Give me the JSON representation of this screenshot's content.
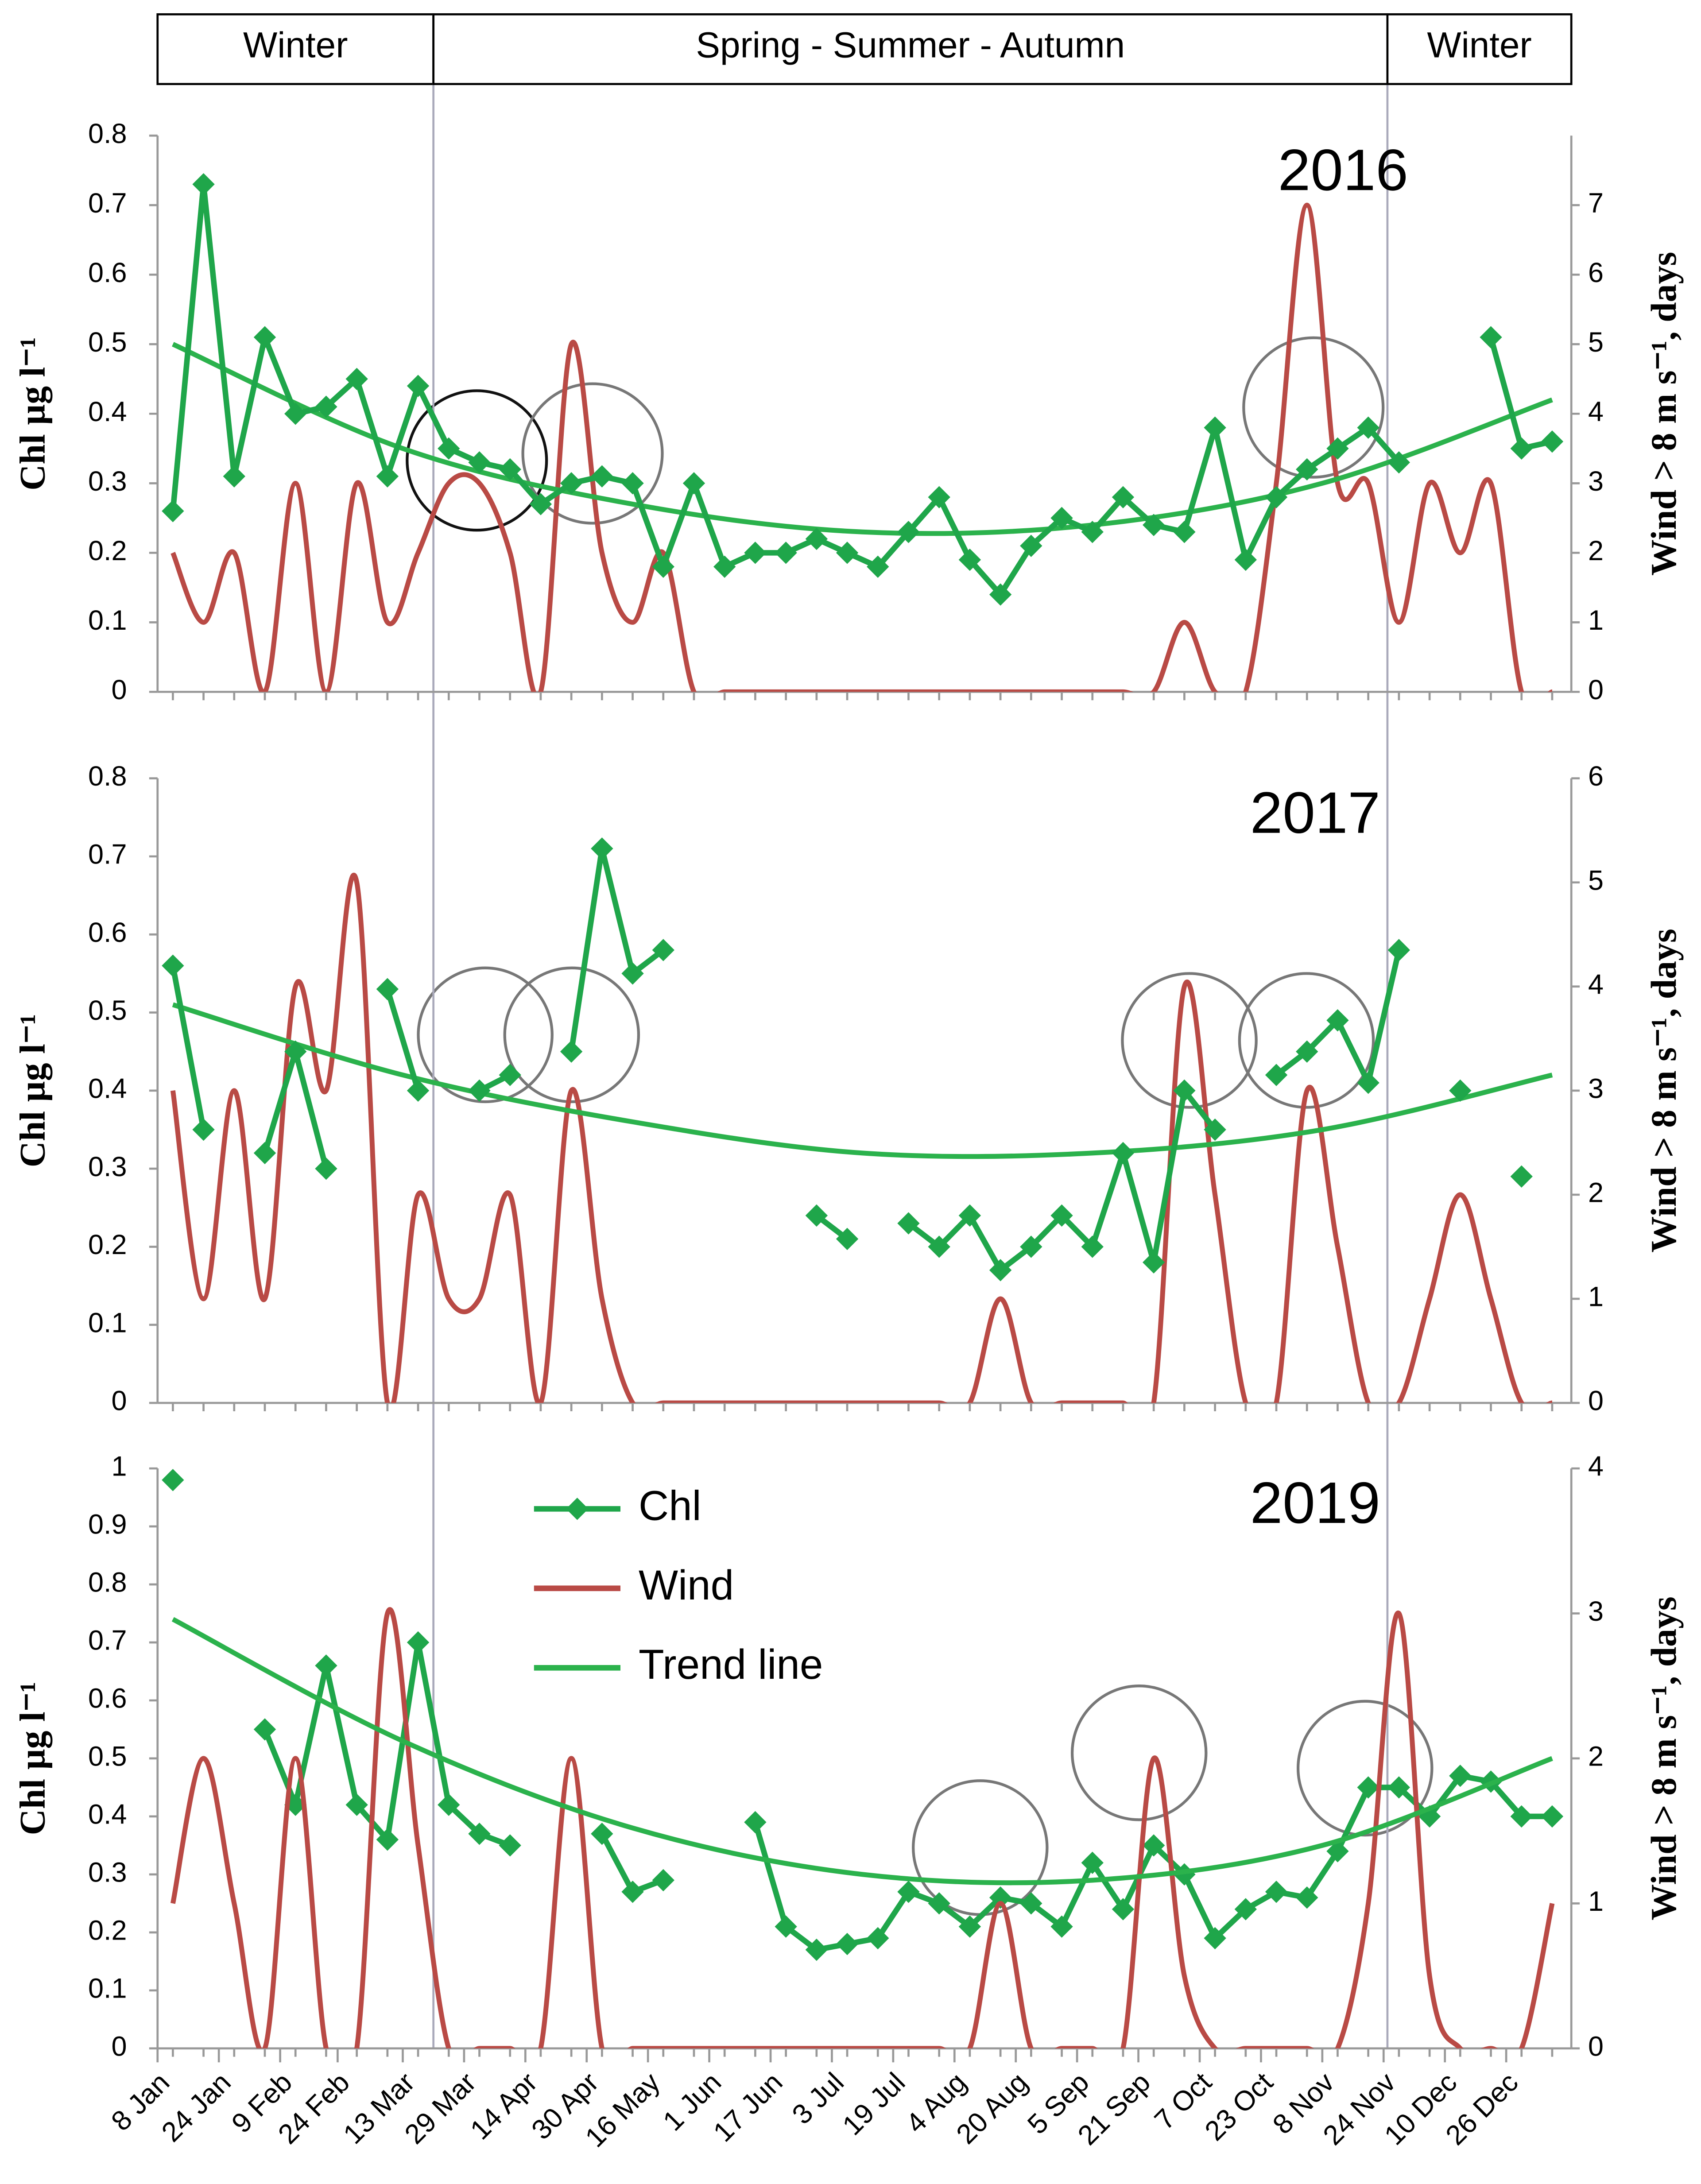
{
  "seasons": [
    {
      "label": "Winter",
      "from": 8,
      "to": 80
    },
    {
      "label": "Spring - Summer - Autumn",
      "from": 80,
      "to": 329
    },
    {
      "label": "Winter",
      "from": 329,
      "to": 377
    }
  ],
  "chart_data": [
    {
      "type": "line",
      "annotation": "2016",
      "y_label": "Chl µg l⁻¹",
      "y2_label": "Wind > 8 m s⁻¹, days",
      "x": [
        12,
        20,
        28,
        36,
        44,
        52,
        60,
        68,
        76,
        84,
        92,
        100,
        108,
        116,
        124,
        132,
        140,
        148,
        156,
        164,
        172,
        180,
        188,
        196,
        204,
        212,
        220,
        228,
        236,
        244,
        252,
        260,
        268,
        276,
        284,
        292,
        300,
        308,
        316,
        324,
        332,
        340,
        348,
        356,
        364,
        372
      ],
      "xlim": [
        8,
        377
      ],
      "ylim": [
        0,
        0.8
      ],
      "yticks": [
        0,
        0.1,
        0.2,
        0.3,
        0.4,
        0.5,
        0.6,
        0.7,
        0.8
      ],
      "y2lim": [
        0,
        8
      ],
      "y2ticks": [
        0,
        1,
        2,
        3,
        4,
        5,
        6,
        7
      ],
      "series": [
        {
          "color": "#b94a45",
          "axis": "y2",
          "smooth": true,
          "values": [
            2,
            1,
            2,
            0,
            3,
            0,
            3,
            1,
            2,
            3,
            3,
            2,
            0,
            5,
            2,
            1,
            2,
            0,
            0,
            0,
            0,
            0,
            0,
            0,
            0,
            0,
            0,
            0,
            0,
            0,
            0,
            0,
            0,
            1,
            0,
            0,
            3,
            7,
            3,
            3,
            1,
            3,
            2,
            3,
            0,
            0
          ]
        },
        {
          "color": "#2bb24c",
          "smooth": true,
          "x": [
            12,
            72,
            132,
            192,
            252,
            312,
            372
          ],
          "values": [
            0.5,
            0.35,
            0.27,
            0.23,
            0.24,
            0.3,
            0.42
          ]
        },
        {
          "color": "#1fa64a",
          "marker": "diamond",
          "values": [
            0.26,
            0.73,
            0.31,
            0.51,
            0.4,
            0.41,
            0.45,
            0.31,
            0.44,
            0.35,
            0.33,
            0.32,
            0.27,
            0.3,
            0.31,
            0.3,
            0.18,
            0.3,
            0.18,
            0.2,
            0.2,
            0.22,
            0.2,
            0.18,
            0.23,
            0.28,
            0.19,
            0.14,
            0.21,
            0.25,
            0.23,
            0.28,
            0.24,
            0.23,
            0.38,
            0.19,
            0.28,
            0.32,
            0.35,
            0.38,
            0.33,
            null,
            null,
            0.51,
            0.35,
            0.36
          ]
        }
      ]
    },
    {
      "type": "line",
      "annotation": "2017",
      "y_label": "Chl µg l⁻¹",
      "y2_label": "Wind > 8 m s⁻¹, days",
      "x": [
        12,
        20,
        28,
        36,
        44,
        52,
        60,
        68,
        76,
        84,
        92,
        100,
        108,
        116,
        124,
        132,
        140,
        148,
        156,
        164,
        172,
        180,
        188,
        196,
        204,
        212,
        220,
        228,
        236,
        244,
        252,
        260,
        268,
        276,
        284,
        292,
        300,
        308,
        316,
        324,
        332,
        340,
        348,
        356,
        364,
        372
      ],
      "xlim": [
        8,
        377
      ],
      "ylim": [
        0,
        0.8
      ],
      "yticks": [
        0,
        0.1,
        0.2,
        0.3,
        0.4,
        0.5,
        0.6,
        0.7,
        0.8
      ],
      "y2lim": [
        0,
        6
      ],
      "y2ticks": [
        0,
        1,
        2,
        3,
        4,
        5,
        6
      ],
      "series": [
        {
          "color": "#b94a45",
          "axis": "y2",
          "smooth": true,
          "values": [
            3,
            1,
            3,
            1,
            4,
            3,
            5,
            0,
            2,
            1,
            1,
            2,
            0,
            3,
            1,
            0,
            0,
            0,
            0,
            0,
            0,
            0,
            0,
            0,
            0,
            0,
            0,
            1,
            0,
            0,
            0,
            0,
            0,
            4,
            2,
            0,
            0,
            3,
            1.5,
            0,
            0,
            1,
            2,
            1,
            0,
            0
          ]
        },
        {
          "color": "#2bb24c",
          "smooth": true,
          "x": [
            12,
            72,
            132,
            192,
            252,
            312,
            372
          ],
          "values": [
            0.51,
            0.42,
            0.36,
            0.32,
            0.32,
            0.35,
            0.42
          ]
        },
        {
          "color": "#1fa64a",
          "marker": "diamond",
          "values": [
            0.56,
            0.35,
            null,
            0.32,
            0.45,
            0.3,
            null,
            0.53,
            0.4,
            null,
            0.4,
            0.42,
            null,
            0.45,
            0.71,
            0.55,
            0.58,
            null,
            null,
            null,
            null,
            0.24,
            0.21,
            null,
            0.23,
            0.2,
            0.24,
            0.17,
            0.2,
            0.24,
            0.2,
            0.32,
            0.18,
            0.4,
            0.35,
            null,
            0.42,
            0.45,
            0.49,
            0.41,
            0.58,
            null,
            0.4,
            null,
            0.29,
            null
          ]
        }
      ]
    },
    {
      "type": "line",
      "annotation": "2019",
      "y_label": "Chl µg l⁻¹",
      "y2_label": "Wind > 8 m s⁻¹, days",
      "x": [
        12,
        20,
        28,
        36,
        44,
        52,
        60,
        68,
        76,
        84,
        92,
        100,
        108,
        116,
        124,
        132,
        140,
        148,
        156,
        164,
        172,
        180,
        188,
        196,
        204,
        212,
        220,
        228,
        236,
        244,
        252,
        260,
        268,
        276,
        284,
        292,
        300,
        308,
        316,
        324,
        332,
        340,
        348,
        356,
        364,
        372
      ],
      "xlim": [
        8,
        377
      ],
      "ylim": [
        0,
        1
      ],
      "yticks": [
        0,
        0.1,
        0.2,
        0.3,
        0.4,
        0.5,
        0.6,
        0.7,
        0.8,
        0.9,
        1
      ],
      "y2lim": [
        0,
        4
      ],
      "y2ticks": [
        0,
        1,
        2,
        3,
        4
      ],
      "xticks": [
        {
          "value": 8,
          "label": "8 Jan"
        },
        {
          "value": 24,
          "label": "24 Jan"
        },
        {
          "value": 40,
          "label": "9 Feb"
        },
        {
          "value": 55,
          "label": "24 Feb"
        },
        {
          "value": 72,
          "label": "13 Mar"
        },
        {
          "value": 88,
          "label": "29 Mar"
        },
        {
          "value": 104,
          "label": "14 Apr"
        },
        {
          "value": 120,
          "label": "30 Apr"
        },
        {
          "value": 136,
          "label": "16 May"
        },
        {
          "value": 152,
          "label": "1 Jun"
        },
        {
          "value": 168,
          "label": "17 Jun"
        },
        {
          "value": 184,
          "label": "3 Jul"
        },
        {
          "value": 200,
          "label": "19 Jul"
        },
        {
          "value": 216,
          "label": "4 Aug"
        },
        {
          "value": 232,
          "label": "20 Aug"
        },
        {
          "value": 248,
          "label": "5 Sep"
        },
        {
          "value": 264,
          "label": "21 Sep"
        },
        {
          "value": 280,
          "label": "7 Oct"
        },
        {
          "value": 296,
          "label": "23 Oct"
        },
        {
          "value": 312,
          "label": "8 Nov"
        },
        {
          "value": 328,
          "label": "24 Nov"
        },
        {
          "value": 344,
          "label": "10 Dec"
        },
        {
          "value": 360,
          "label": "26 Dec"
        }
      ],
      "series": [
        {
          "name": "Chl",
          "color": "#1fa64a",
          "marker": "diamond",
          "values": [
            0.98,
            null,
            null,
            0.55,
            0.42,
            0.66,
            0.42,
            0.36,
            0.7,
            0.42,
            0.37,
            0.35,
            null,
            null,
            0.37,
            0.27,
            0.29,
            null,
            null,
            0.39,
            0.21,
            0.17,
            0.18,
            0.19,
            0.27,
            0.25,
            0.21,
            0.26,
            0.25,
            0.21,
            0.32,
            0.24,
            0.35,
            0.3,
            0.19,
            0.24,
            0.27,
            0.26,
            0.34,
            0.45,
            0.45,
            0.4,
            0.47,
            0.46,
            0.4,
            0.4
          ]
        },
        {
          "name": "Wind",
          "color": "#b94a45",
          "axis": "y2",
          "smooth": true,
          "values": [
            1,
            2,
            1,
            0,
            2,
            0,
            0,
            3,
            1.4,
            0,
            0,
            0,
            0,
            2,
            0,
            0,
            0,
            0,
            0,
            0,
            0,
            0,
            0,
            0,
            0,
            0,
            0,
            1,
            0,
            0,
            0,
            0,
            2,
            0.5,
            0,
            0,
            0,
            0,
            0,
            1,
            3,
            0.5,
            0,
            0,
            0,
            1
          ]
        },
        {
          "name": "Trend line",
          "color": "#2bb24c",
          "smooth": true,
          "x": [
            12,
            72,
            132,
            192,
            252,
            312,
            372
          ],
          "values": [
            0.74,
            0.53,
            0.38,
            0.3,
            0.29,
            0.35,
            0.5
          ]
        }
      ]
    }
  ]
}
